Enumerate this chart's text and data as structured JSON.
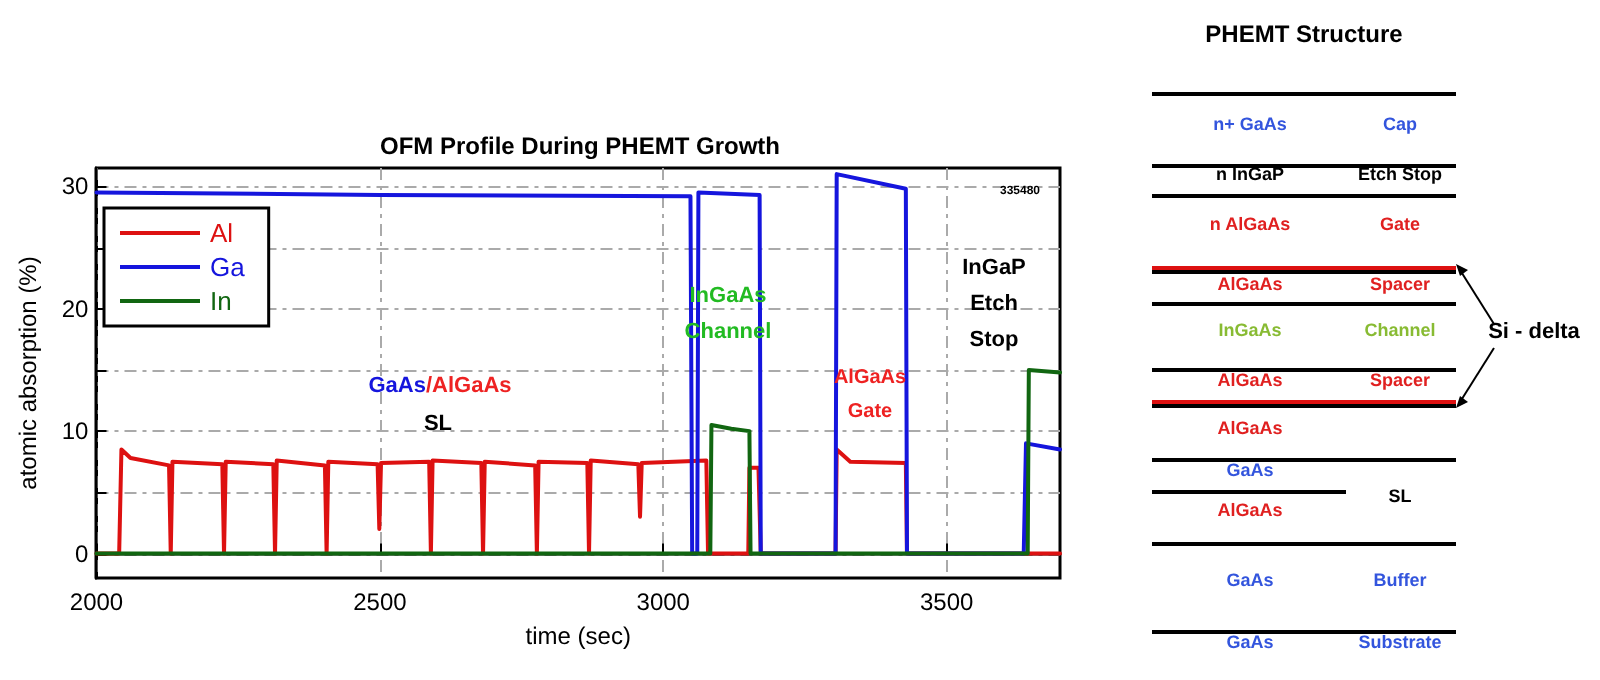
{
  "chart_data": [
    {
      "type": "line",
      "title": "OFM Profile During PHEMT Growth",
      "xlabel": "time (sec)",
      "ylabel": "atomic absorption (%)",
      "xlim": [
        2000,
        3700
      ],
      "xticks": [
        2000,
        2500,
        3000,
        3500
      ],
      "ylim": [
        -2,
        31.5
      ],
      "yticks": [
        0,
        {
          "value": 5,
          "label": null
        },
        10,
        {
          "value": 15,
          "label": null
        },
        20,
        {
          "value": 25,
          "label": null
        },
        30
      ],
      "grid": true,
      "legend": "top left",
      "marker": "none",
      "line_style": "solid",
      "series": [
        {
          "name": "Al",
          "color": "#dd1111",
          "x": [
            2000,
            2040,
            2044,
            2060,
            2128,
            2131,
            2134,
            2222,
            2225,
            2228,
            2312,
            2315,
            2318,
            2403,
            2406,
            2409,
            2496,
            2499,
            2502,
            2587,
            2590,
            2593,
            2679,
            2682,
            2685,
            2774,
            2777,
            2780,
            2866,
            2869,
            2872,
            2956,
            2959,
            2962,
            3076,
            3079,
            3150,
            3152,
            3168,
            3172,
            3304,
            3306,
            3330,
            3428,
            3430,
            3700
          ],
          "values": [
            0,
            0,
            8.5,
            7.8,
            7.2,
            0,
            7.5,
            7.3,
            0,
            7.5,
            7.3,
            0,
            7.6,
            7.2,
            0,
            7.5,
            7.3,
            2,
            7.4,
            7.5,
            0,
            7.6,
            7.4,
            0,
            7.5,
            7.2,
            0,
            7.5,
            7.4,
            0,
            7.6,
            7.3,
            3,
            7.4,
            7.6,
            0,
            0,
            7,
            7,
            0,
            0,
            8.5,
            7.5,
            7.4,
            0,
            0
          ]
        },
        {
          "name": "Ga",
          "color": "#1515dd",
          "x": [
            2000,
            2500,
            3048,
            3051,
            3060,
            3062,
            3170,
            3172,
            3304,
            3306,
            3428,
            3430,
            3636,
            3640,
            3700
          ],
          "values": [
            29.5,
            29.3,
            29.2,
            0,
            0,
            29.5,
            29.3,
            0,
            0,
            31,
            29.8,
            0,
            0,
            9,
            8.5
          ]
        },
        {
          "name": "In",
          "color": "#116611",
          "x": [
            2000,
            2500,
            3083,
            3085,
            3120,
            3152,
            3154,
            3643,
            3645,
            3700
          ],
          "values": [
            0,
            0,
            0,
            10.5,
            10.2,
            10,
            0,
            0,
            15,
            14.8
          ]
        }
      ],
      "annotations": [
        "GaAs/AlGaAs",
        "SL",
        "InGaAs",
        "Channel",
        "AlGaAs",
        "Gate",
        "InGaP",
        "Etch",
        "Stop",
        "335480"
      ]
    },
    {
      "type": "other",
      "title": "PHEMT Structure",
      "annotations": [
        "n+ GaAs",
        "Cap",
        "n InGaP",
        "Etch Stop",
        "n AlGaAs",
        "Gate",
        "AlGaAs",
        "Spacer",
        "InGaAs",
        "Channel",
        "AlGaAs",
        "Spacer",
        "AlGaAs",
        "GaAs",
        "AlGaAs",
        "SL",
        "GaAs",
        "Buffer",
        "GaAs",
        "Substrate",
        "Si - delta"
      ]
    }
  ]
}
